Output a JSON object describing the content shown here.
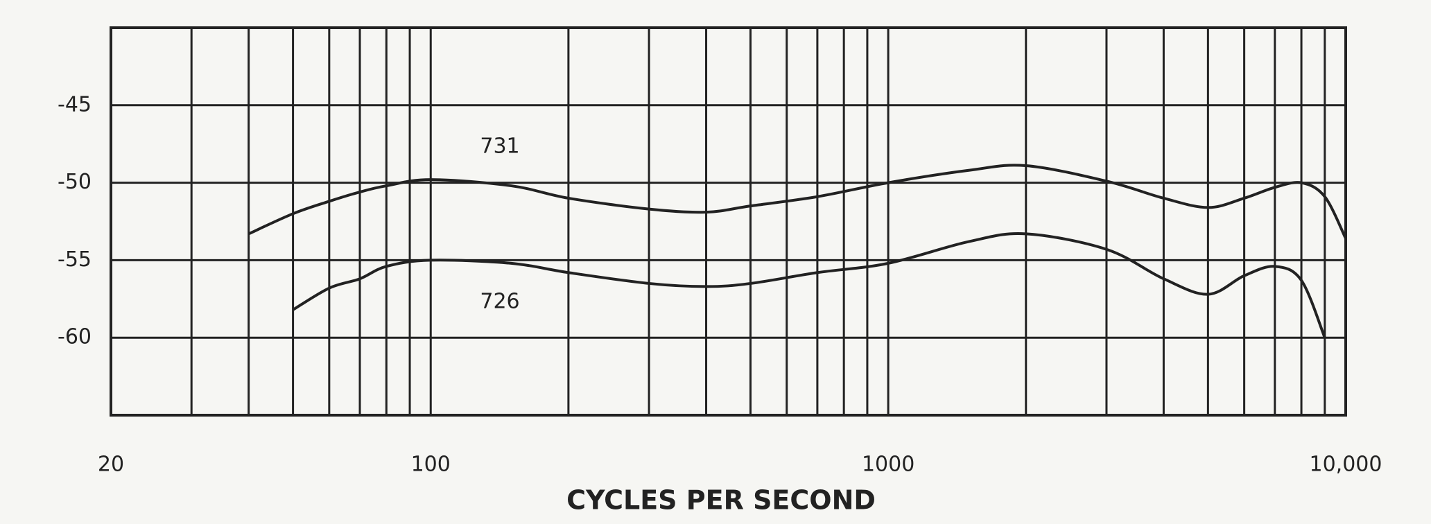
{
  "chart_data": {
    "type": "line",
    "x_label": "CYCLES PER SECOND",
    "x": [
      40,
      50,
      60,
      70,
      80,
      100,
      150,
      200,
      300,
      400,
      500,
      700,
      1000,
      1500,
      2000,
      3000,
      4000,
      5000,
      6000,
      7000,
      8000,
      9000,
      10000
    ],
    "series": [
      {
        "name": "731",
        "color": "#222222",
        "values": [
          -53.3,
          -52.0,
          -51.2,
          -50.6,
          -50.2,
          -49.8,
          -50.2,
          -51.0,
          -51.7,
          -51.9,
          -51.5,
          -50.9,
          -50.0,
          -49.2,
          -48.9,
          -49.9,
          -51.0,
          -51.6,
          -51.0,
          -50.3,
          -50.0,
          -50.9,
          -53.6
        ]
      },
      {
        "name": "726",
        "color": "#222222",
        "values": [
          null,
          -58.2,
          -56.8,
          -56.2,
          -55.4,
          -55.0,
          -55.2,
          -55.8,
          -56.5,
          -56.7,
          -56.5,
          -55.8,
          -55.2,
          -53.8,
          -53.3,
          -54.3,
          -56.2,
          -57.2,
          -56.0,
          -55.4,
          -56.3,
          -60.0,
          null
        ]
      }
    ],
    "xlim": [
      20,
      10000
    ],
    "x_log": true,
    "xticks": [
      20,
      100,
      1000,
      {
        "value": 10000,
        "label": "10,000"
      }
    ],
    "x_grid": [
      30,
      40,
      50,
      60,
      70,
      80,
      90,
      200,
      300,
      400,
      500,
      600,
      700,
      800,
      900,
      2000,
      3000,
      4000,
      5000,
      6000,
      7000,
      8000,
      9000
    ],
    "ylim": [
      -65,
      -40
    ],
    "yticks": [
      -45,
      -50,
      -55,
      -60
    ],
    "grid": true
  }
}
